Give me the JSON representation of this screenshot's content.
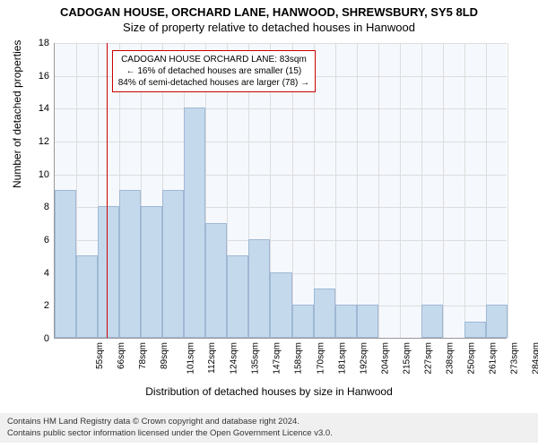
{
  "titles": {
    "line1": "CADOGAN HOUSE, ORCHARD LANE, HANWOOD, SHREWSBURY, SY5 8LD",
    "line2": "Size of property relative to detached houses in Hanwood"
  },
  "chart": {
    "type": "histogram",
    "plot_bg": "#f5f8fc",
    "bar_fill": "#c5d9ed",
    "bar_stroke": "#9fb8d4",
    "grid_color": "#dddddd",
    "axis_color": "#999999",
    "ref_line_color": "#cc0000",
    "ylim": [
      0,
      18
    ],
    "ytick_step": 2,
    "yticks": [
      0,
      2,
      4,
      6,
      8,
      10,
      12,
      14,
      16,
      18
    ],
    "xticks": [
      "55sqm",
      "66sqm",
      "78sqm",
      "89sqm",
      "101sqm",
      "112sqm",
      "124sqm",
      "135sqm",
      "147sqm",
      "158sqm",
      "170sqm",
      "181sqm",
      "192sqm",
      "204sqm",
      "215sqm",
      "227sqm",
      "238sqm",
      "250sqm",
      "261sqm",
      "273sqm",
      "284sqm"
    ],
    "values": [
      9,
      5,
      8,
      9,
      8,
      9,
      14,
      7,
      5,
      6,
      4,
      2,
      3,
      2,
      2,
      0,
      0,
      2,
      0,
      1,
      2
    ],
    "ref_line_index": 2.4,
    "ylabel": "Number of detached properties",
    "xlabel": "Distribution of detached houses by size in Hanwood"
  },
  "annotation": {
    "line1": "CADOGAN HOUSE ORCHARD LANE: 83sqm",
    "line2": "← 16% of detached houses are smaller (15)",
    "line3": "84% of semi-detached houses are larger (78) →"
  },
  "footer": {
    "line1": "Contains HM Land Registry data © Crown copyright and database right 2024.",
    "line2": "Contains public sector information licensed under the Open Government Licence v3.0."
  },
  "style": {
    "title_fontsize": 13,
    "tick_fontsize": 11,
    "xtick_fontsize": 10,
    "label_fontsize": 12,
    "annotation_fontsize": 10,
    "footer_fontsize": 9.5
  }
}
